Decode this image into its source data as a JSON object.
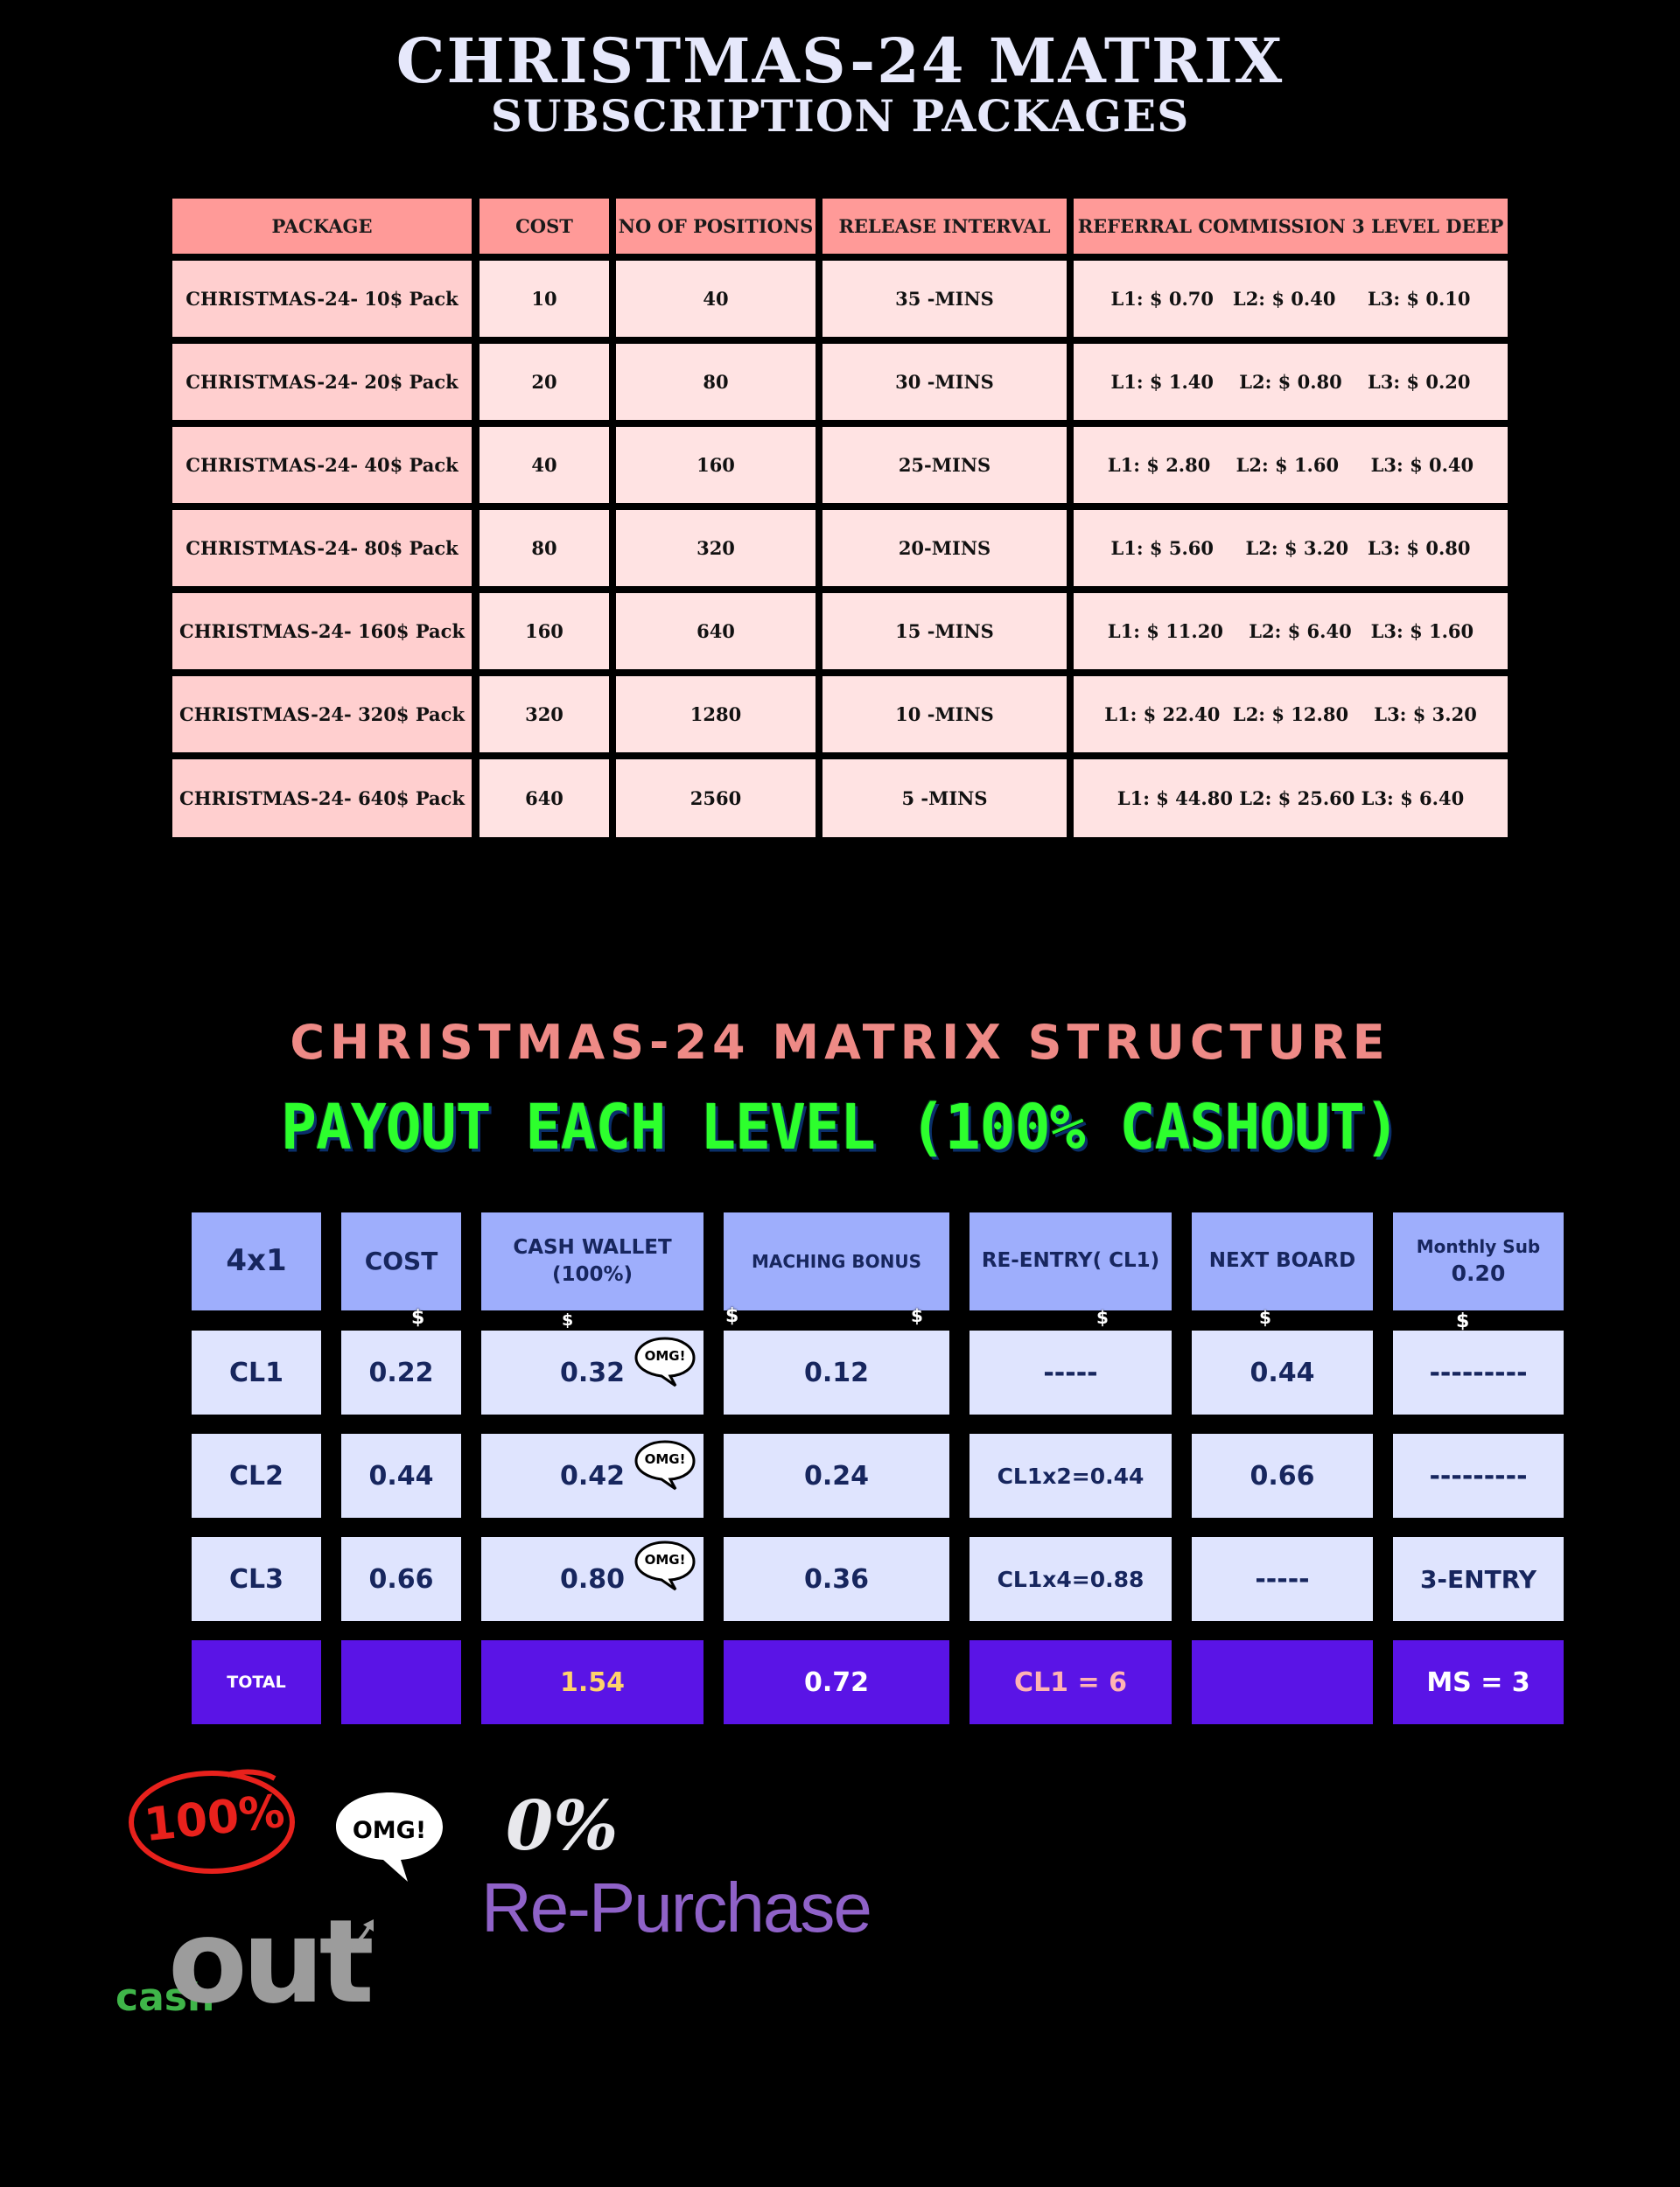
{
  "header": {
    "title": "CHRISTMAS-24 MATRIX",
    "subtitle": "SUBSCRIPTION PACKAGES"
  },
  "packages_table": {
    "columns": [
      "PACKAGE",
      "COST",
      "NO OF POSITIONS",
      "RELEASE INTERVAL",
      "REFERRAL COMMISSION 3 LEVEL DEEP"
    ],
    "rows": [
      [
        "CHRISTMAS-24- 10$ Pack",
        "10",
        "40",
        "35 -MINS",
        "L1: $ 0.70   L2: $ 0.40     L3: $ 0.10"
      ],
      [
        "CHRISTMAS-24- 20$ Pack",
        "20",
        "80",
        "30 -MINS",
        "L1: $ 1.40    L2: $ 0.80    L3: $ 0.20"
      ],
      [
        "CHRISTMAS-24- 40$ Pack",
        "40",
        "160",
        "25-MINS",
        "L1: $ 2.80    L2: $ 1.60     L3: $ 0.40"
      ],
      [
        "CHRISTMAS-24- 80$ Pack",
        "80",
        "320",
        "20-MINS",
        "L1: $ 5.60     L2: $ 3.20   L3: $ 0.80"
      ],
      [
        "CHRISTMAS-24- 160$ Pack",
        "160",
        "640",
        "15 -MINS",
        "L1: $ 11.20    L2: $ 6.40   L3: $ 1.60"
      ],
      [
        "CHRISTMAS-24- 320$ Pack",
        "320",
        "1280",
        "10 -MINS",
        "L1: $ 22.40  L2: $ 12.80    L3: $ 3.20"
      ],
      [
        "CHRISTMAS-24- 640$ Pack",
        "640",
        "2560",
        "5 -MINS",
        "L1: $ 44.80 L2: $ 25.60 L3: $ 6.40"
      ]
    ]
  },
  "structure": {
    "title": "CHRISTMAS-24 MATRIX STRUCTURE",
    "subtitle": "PAYOUT EACH LEVEL (100% CASHOUT)"
  },
  "structure_table": {
    "columns": [
      "4x1",
      "COST",
      "CASH WALLET (100%)",
      "MACHING BONUS",
      "RE-ENTRY( CL1)",
      "NEXT BOARD",
      "Monthly Sub"
    ],
    "monthly_sub_value": "0.20",
    "rows": [
      [
        "CL1",
        "0.22",
        "0.32",
        "0.12",
        "-----",
        "0.44",
        "---------"
      ],
      [
        "CL2",
        "0.44",
        "0.42",
        "0.24",
        "CL1x2=0.44",
        "0.66",
        "---------"
      ],
      [
        "CL3",
        "0.66",
        "0.80",
        "0.36",
        "CL1x4=0.88",
        "-----",
        "3-ENTRY"
      ]
    ],
    "total": [
      "TOTAL",
      "",
      "1.54",
      "0.72",
      "CL1 = 6",
      "",
      "MS = 3"
    ],
    "dollar_symbol": "$",
    "omg_text": "OMG!",
    "colors": {
      "header_bg": "#9eaefc",
      "body_bg": "#dfe4fe",
      "total_bg": "#5a14e6",
      "total_cash": "#ffd36b",
      "total_reentry": "#ffb3b3"
    }
  },
  "badges": {
    "percent": "100%",
    "omg": "OMG!",
    "cash": "cash",
    "out": "out",
    "zero_percent": "0%",
    "repurchase": "Re-Purchase"
  }
}
